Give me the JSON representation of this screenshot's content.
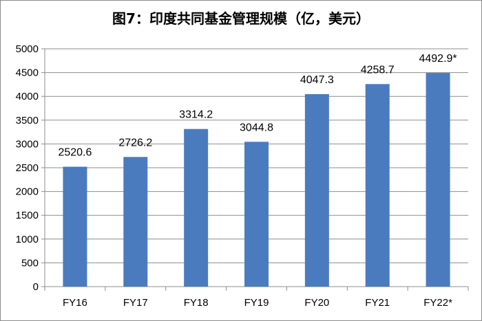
{
  "chart_data": {
    "type": "bar",
    "title": "图7：印度共同基金管理规模（亿，美元）",
    "categories": [
      "FY16",
      "FY17",
      "FY18",
      "FY19",
      "FY20",
      "FY21",
      "FY22*"
    ],
    "values": [
      2520.6,
      2726.2,
      3314.2,
      3044.8,
      4047.3,
      4258.7,
      4492.9
    ],
    "data_labels": [
      "2520.6",
      "2726.2",
      "3314.2",
      "3044.8",
      "4047.3",
      "4258.7",
      "4492.9*"
    ],
    "ylim": [
      0,
      5000
    ],
    "yticks": [
      0,
      500,
      1000,
      1500,
      2000,
      2500,
      3000,
      3500,
      4000,
      4500,
      5000
    ],
    "grid": true,
    "legend": "none",
    "bar_color": "#4a7bbf"
  }
}
